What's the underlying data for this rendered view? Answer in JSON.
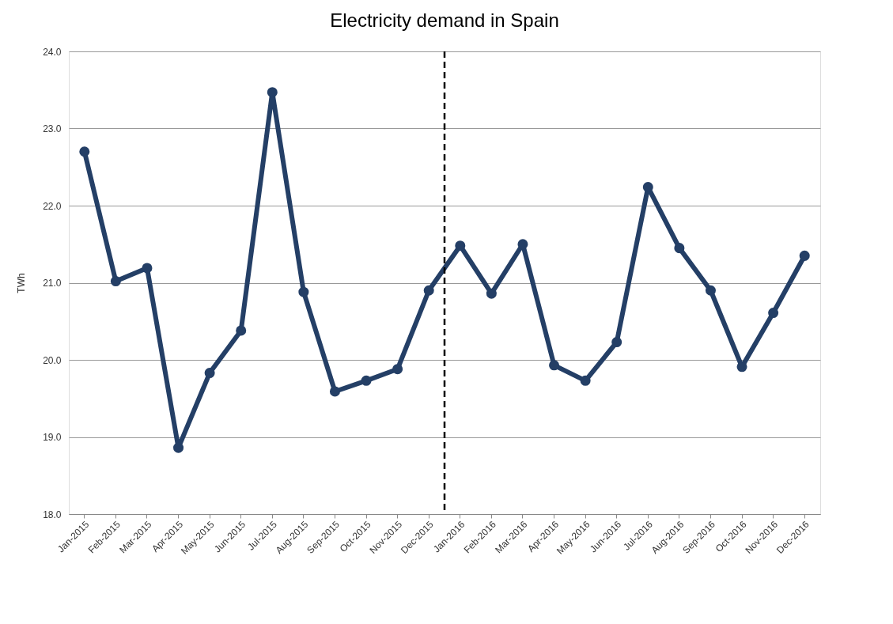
{
  "chart_data": {
    "type": "line",
    "title": "Electricity demand in Spain",
    "ylabel": "TWh",
    "categories": [
      "Jan-2015",
      "Feb-2015",
      "Mar-2015",
      "Apr-2015",
      "May-2015",
      "Jun-2015",
      "Jul-2015",
      "Aug-2015",
      "Sep-2015",
      "Oct-2015",
      "Nov-2015",
      "Dec-2015",
      "Jan-2016",
      "Feb-2016",
      "Mar-2016",
      "Apr-2016",
      "May-2016",
      "Jun-2016",
      "Jul-2016",
      "Aug-2016",
      "Sep-2016",
      "Oct-2016",
      "Nov-2016",
      "Dec-2016"
    ],
    "series": [
      {
        "color": "#243f66",
        "values": [
          22.7,
          21.02,
          21.19,
          18.86,
          19.83,
          20.38,
          23.47,
          20.88,
          19.59,
          19.73,
          19.88,
          20.9,
          21.48,
          20.86,
          21.5,
          19.93,
          19.73,
          20.23,
          22.24,
          21.45,
          20.9,
          19.91,
          20.61,
          21.35
        ]
      }
    ],
    "ylim": [
      18,
      24
    ],
    "yticks": [
      {
        "value": 18,
        "label": "18.0"
      },
      {
        "value": 19,
        "label": "19.0"
      },
      {
        "value": 20,
        "label": "20.0"
      },
      {
        "value": 21,
        "label": "21.0"
      },
      {
        "value": 22,
        "label": "22.0"
      },
      {
        "value": 23,
        "label": "23.0"
      },
      {
        "value": 24,
        "label": "24.0"
      }
    ],
    "ref_lines": [
      {
        "axis": "x",
        "value": "Dec-2015",
        "color": "#000000",
        "line_style": "dashed"
      }
    ],
    "grid": "y",
    "marker": "circle",
    "line_style": "solid"
  }
}
